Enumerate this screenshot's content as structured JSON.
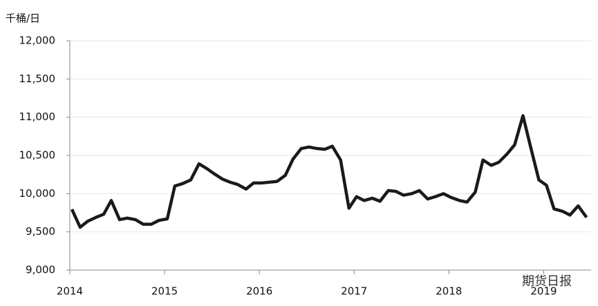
{
  "chart_data": {
    "type": "line",
    "y_axis_label": "千桶/日",
    "watermark": "期货日报",
    "x": [
      2014.022,
      2014.109,
      2014.19,
      2014.277,
      2014.357,
      2014.437,
      2014.525,
      2014.605,
      2014.692,
      2014.773,
      2014.86,
      2014.94,
      2015.028,
      2015.108,
      2015.188,
      2015.276,
      2015.363,
      2015.443,
      2015.523,
      2015.611,
      2015.691,
      2015.771,
      2015.859,
      2015.939,
      2016.026,
      2016.106,
      2016.187,
      2016.274,
      2016.354,
      2016.442,
      2016.522,
      2016.609,
      2016.69,
      2016.77,
      2016.857,
      2016.945,
      2017.025,
      2017.105,
      2017.192,
      2017.273,
      2017.36,
      2017.44,
      2017.52,
      2017.608,
      2017.688,
      2017.776,
      2017.856,
      2017.943,
      2018.023,
      2018.111,
      2018.191,
      2018.278,
      2018.359,
      2018.446,
      2018.526,
      2018.614,
      2018.694,
      2018.781,
      2018.862,
      2018.949,
      2019.029,
      2019.109,
      2019.197,
      2019.277,
      2019.364,
      2019.452
    ],
    "series": [
      {
        "color": "#1a1a1a",
        "values": [
          9795,
          9560,
          9640,
          9690,
          9730,
          9910,
          9660,
          9680,
          9660,
          9600,
          9600,
          9650,
          9670,
          10100,
          10130,
          10180,
          10390,
          10330,
          10260,
          10190,
          10150,
          10120,
          10060,
          10140,
          10140,
          10150,
          10160,
          10240,
          10450,
          10590,
          10610,
          10590,
          10580,
          10620,
          10440,
          9810,
          9960,
          9910,
          9940,
          9900,
          10040,
          10030,
          9980,
          10000,
          10040,
          9930,
          9960,
          10000,
          9950,
          9910,
          9890,
          10020,
          10440,
          10370,
          10410,
          10520,
          10640,
          11020,
          10610,
          10180,
          10110,
          9800,
          9770,
          9720,
          9840,
          9690
        ]
      }
    ],
    "xlim": [
      2014,
      2019.5
    ],
    "xticks": [
      2014,
      2015,
      2016,
      2017,
      2018,
      2019
    ],
    "ylim": [
      9000,
      12000
    ],
    "yticks": [
      {
        "value": 9000,
        "label": "9,000"
      },
      {
        "value": 9500,
        "label": "9,500"
      },
      {
        "value": 10000,
        "label": "10,000"
      },
      {
        "value": 10500,
        "label": "10,500"
      },
      {
        "value": 11000,
        "label": "11,000"
      },
      {
        "value": 11500,
        "label": "11,500"
      },
      {
        "value": 12000,
        "label": "12,000"
      }
    ],
    "grid": true
  }
}
